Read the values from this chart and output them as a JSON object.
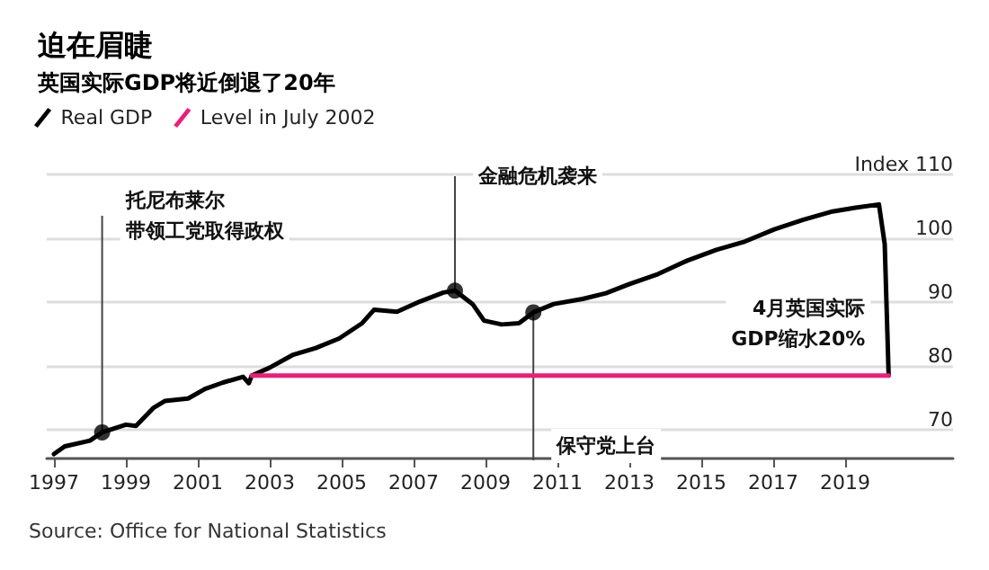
{
  "chart_data": {
    "type": "line",
    "title": "迫在眉睫",
    "subtitle": "英国实际GDP将近倒退了20年",
    "ylim": [
      65.5,
      110
    ],
    "yticks": [
      70,
      80,
      90,
      100,
      {
        "value": 110,
        "label": "Index 110"
      }
    ],
    "xlim": [
      1996.8,
      2022
    ],
    "xticks": [
      1997,
      1999,
      2001,
      2003,
      2005,
      2007,
      2009,
      2011,
      2013,
      2015,
      2017,
      2019
    ],
    "grid": "y",
    "legend": "top left",
    "marker": "none",
    "line_style": "solid",
    "series": [
      {
        "name": "Real GDP",
        "color": "#000000",
        "x": [
          1997.0,
          1997.3,
          1998.0,
          1998.34,
          1999.0,
          1999.28,
          1999.76,
          2000.08,
          2000.73,
          2001.2,
          2001.7,
          2002.26,
          2002.42,
          2002.5,
          2002.99,
          2003.63,
          2004.28,
          2004.93,
          2005.57,
          2005.9,
          2006.54,
          2007.18,
          2007.83,
          2008.15,
          2008.64,
          2008.96,
          2009.45,
          2009.93,
          2010.33,
          2010.9,
          2011.7,
          2012.35,
          2012.99,
          2013.8,
          2014.61,
          2015.42,
          2016.22,
          2017.03,
          2017.84,
          2018.65,
          2019.29,
          2019.94,
          2020.1,
          2020.21
        ],
        "values": [
          66.2,
          67.4,
          68.3,
          69.6,
          70.8,
          70.6,
          73.4,
          74.5,
          74.9,
          76.4,
          77.4,
          78.3,
          77.3,
          78.5,
          79.7,
          81.7,
          82.8,
          84.3,
          86.7,
          88.8,
          88.5,
          90.1,
          91.5,
          91.8,
          89.7,
          87.1,
          86.5,
          86.7,
          88.4,
          89.7,
          90.5,
          91.4,
          92.8,
          94.4,
          96.5,
          98.2,
          99.5,
          101.4,
          102.9,
          104.2,
          104.8,
          105.3,
          99.1,
          78.5
        ]
      },
      {
        "name": "Level in July 2002",
        "color": "#ec1e79",
        "x": [
          2002.5,
          2020.21
        ],
        "values": [
          78.5,
          78.5
        ]
      }
    ],
    "annotations": [
      {
        "text": "托尼布莱尔带领工党取得政权",
        "x": 1998.34,
        "y": 69.6
      },
      {
        "text": "金融危机袭来",
        "x": 2008.15,
        "y": 91.8
      },
      {
        "text": "保守党上台",
        "x": 2010.33,
        "y": 88.4
      },
      {
        "text": "4月英国实际GDP缩水20%",
        "x": 2020.21,
        "y": 78.5
      },
      "Source: Office for National Statistics"
    ]
  }
}
